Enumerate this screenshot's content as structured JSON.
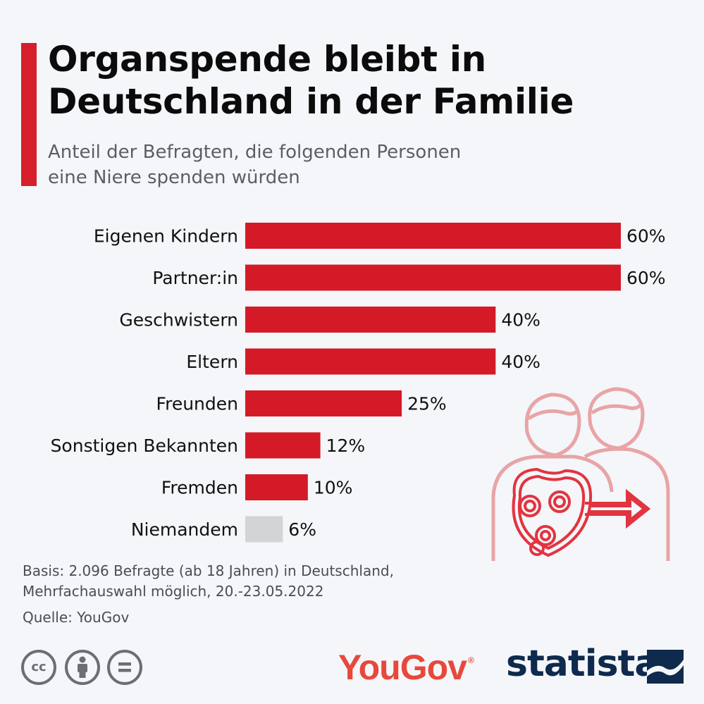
{
  "header": {
    "title_line1": "Organspende bleibt in",
    "title_line2": "Deutschland in der Familie",
    "subtitle_line1": "Anteil der Befragten, die folgenden Personen",
    "subtitle_line2": "eine Niere spenden würden"
  },
  "chart_data": {
    "type": "bar",
    "orientation": "horizontal",
    "categories": [
      "Eigenen Kindern",
      "Partner:in",
      "Geschwistern",
      "Eltern",
      "Freunden",
      "Sonstigen Bekannten",
      "Fremden",
      "Niemandem"
    ],
    "values": [
      60,
      60,
      40,
      40,
      25,
      12,
      10,
      6
    ],
    "value_labels": [
      "60%",
      "60%",
      "40%",
      "40%",
      "25%",
      "12%",
      "10%",
      "6%"
    ],
    "unit": "%",
    "xlim": [
      0,
      60
    ],
    "colors": [
      "#d41a27",
      "#d41a27",
      "#d41a27",
      "#d41a27",
      "#d41a27",
      "#d41a27",
      "#d41a27",
      "#d3d4d6"
    ],
    "grid": false,
    "legend": "none"
  },
  "footer": {
    "basis_line1": "Basis: 2.096 Befragte (ab 18 Jahren) in Deutschland,",
    "basis_line2": "Mehrfachauswahl möglich, 20.-23.05.2022",
    "source": "Quelle: YouGov",
    "license_icons": [
      "cc-icon",
      "by-person-icon",
      "nd-equals-icon"
    ],
    "cc_label": "cc",
    "brand_yougov": "YouGov",
    "brand_yougov_mark": "®",
    "brand_statista": "statista"
  },
  "colors": {
    "accent": "#d5202b",
    "bar": "#d41a27",
    "bar_muted": "#d3d4d6",
    "illustration": "#e8a4a6",
    "background": "#f4f6f9"
  }
}
